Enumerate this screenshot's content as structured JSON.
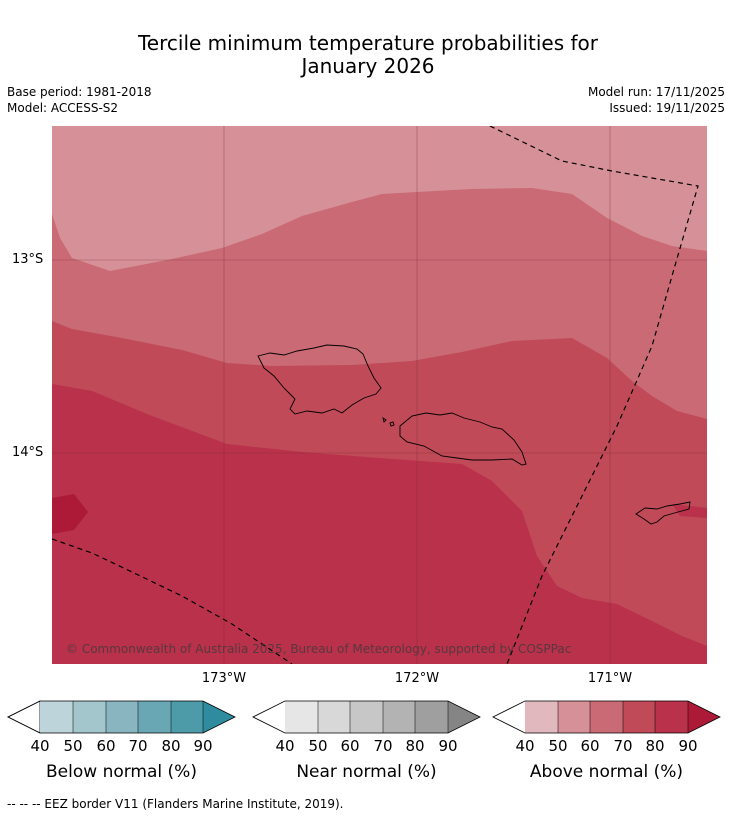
{
  "header": {
    "title_line1": "Tercile minimum temperature probabilities for",
    "title_line2": "January 2026",
    "base_period": "Base period: 1981-2018",
    "model": "Model: ACCESS-S2",
    "model_run": "Model run: 17/11/2025",
    "issued": "Issued: 19/11/2025"
  },
  "map": {
    "lat_labels": [
      "13°S",
      "14°S"
    ],
    "lon_labels": [
      "173°W",
      "172°W",
      "171°W"
    ],
    "copyright": "© Commonwealth of Australia 2025, Bureau of Meteorology, supported by COSPPac",
    "palette": {
      "above_40": "#e2b8bf",
      "above_50": "#d69097",
      "above_60": "#c96a75",
      "above_70": "#c04a58",
      "above_80": "#b9314a",
      "above_90": "#ac1a38"
    }
  },
  "legends": [
    {
      "title": "Below normal (%)",
      "ticks": [
        "40",
        "50",
        "60",
        "70",
        "80",
        "90"
      ],
      "colors": [
        "#bdd4da",
        "#a3c5cc",
        "#88b5c0",
        "#6aa7b4",
        "#4d9aa9",
        "#2e8c9e"
      ]
    },
    {
      "title": "Near normal (%)",
      "ticks": [
        "40",
        "50",
        "60",
        "70",
        "80",
        "90"
      ],
      "colors": [
        "#e6e6e6",
        "#d8d8d8",
        "#c7c7c7",
        "#b3b3b3",
        "#9f9f9f",
        "#858585"
      ]
    },
    {
      "title": "Above normal (%)",
      "ticks": [
        "40",
        "50",
        "60",
        "70",
        "80",
        "90"
      ],
      "colors": [
        "#e2b8bf",
        "#d69097",
        "#c96a75",
        "#c04a58",
        "#b9314a",
        "#ac1a38"
      ]
    }
  ],
  "footnote": "--  --  -- EEZ border V11 (Flanders Marine Institute, 2019)."
}
